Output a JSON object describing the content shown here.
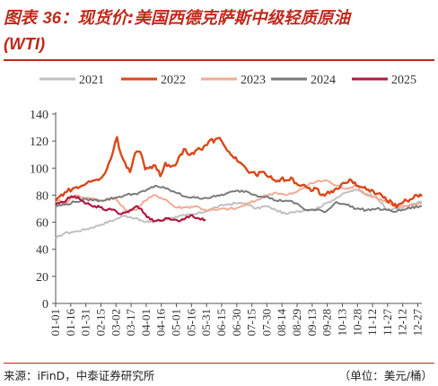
{
  "title": {
    "prefix": "图表",
    "number": "36",
    "text": "：现货价:美国西德克萨斯中级轻质原油",
    "line2": "(WTI)"
  },
  "source": "来源：iFinD，中泰证券研究所",
  "unit": "（单位：美元/桶）",
  "colors": {
    "title": "#c0291b",
    "2021": "#c0c0c0",
    "2022": "#d9481a",
    "2023": "#f2ab95",
    "2024": "#7a7a7a",
    "2025": "#b01842"
  },
  "chart_data": {
    "type": "line",
    "xlabel": "",
    "ylabel": "",
    "ylim": [
      0,
      140
    ],
    "yticks": [
      0,
      20,
      40,
      60,
      80,
      100,
      120,
      140
    ],
    "x_tick_labels": [
      "01-01",
      "01-16",
      "01-31",
      "02-15",
      "03-02",
      "03-17",
      "04-01",
      "04-16",
      "05-01",
      "05-16",
      "05-31",
      "06-15",
      "06-30",
      "07-15",
      "07-30",
      "08-14",
      "08-29",
      "09-13",
      "09-28",
      "10-13",
      "10-28",
      "11-12",
      "11-27",
      "12-12",
      "12-27"
    ],
    "x_unit": "day of year",
    "xlim": [
      1,
      365
    ],
    "grid": false,
    "legend_position": "top",
    "series": [
      {
        "name": "2021",
        "x": [
          1,
          10,
          20,
          32,
          45,
          60,
          70,
          80,
          90,
          100,
          110,
          120,
          130,
          140,
          150,
          160,
          170,
          180,
          190,
          200,
          210,
          220,
          230,
          240,
          250,
          260,
          270,
          280,
          290,
          300,
          310,
          320,
          330,
          340,
          350,
          365
        ],
        "values": [
          48,
          52,
          53,
          55,
          58,
          62,
          65,
          63,
          60,
          61,
          62,
          64,
          65,
          66,
          68,
          71,
          73,
          74,
          74,
          70,
          72,
          69,
          66,
          68,
          69,
          70,
          74,
          78,
          82,
          84,
          81,
          79,
          69,
          70,
          72,
          75
        ]
      },
      {
        "name": "2022",
        "x": [
          1,
          5,
          10,
          18,
          25,
          32,
          40,
          45,
          50,
          54,
          58,
          62,
          66,
          70,
          75,
          80,
          85,
          90,
          95,
          100,
          105,
          110,
          115,
          120,
          125,
          130,
          135,
          140,
          145,
          150,
          155,
          158,
          162,
          166,
          170,
          175,
          180,
          185,
          190,
          195,
          200,
          205,
          210,
          215,
          220,
          225,
          230,
          235,
          240,
          245,
          250,
          255,
          260,
          265,
          270,
          275,
          280,
          285,
          290,
          295,
          300,
          305,
          310,
          315,
          320,
          325,
          330,
          335,
          340,
          345,
          350,
          355,
          360,
          365
        ],
        "values": [
          76,
          79,
          82,
          85,
          86,
          89,
          91,
          92,
          96,
          104,
          112,
          123,
          110,
          104,
          97,
          111,
          112,
          99,
          101,
          102,
          94,
          104,
          101,
          102,
          110,
          114,
          110,
          113,
          114,
          117,
          121,
          119,
          122,
          120,
          115,
          110,
          108,
          104,
          100,
          97,
          95,
          97,
          95,
          94,
          90,
          92,
          91,
          93,
          89,
          87,
          86,
          83,
          85,
          80,
          81,
          83,
          85,
          88,
          89,
          91,
          87,
          86,
          84,
          84,
          81,
          80,
          76,
          75,
          71,
          74,
          76,
          77,
          80,
          79
        ]
      },
      {
        "name": "2023",
        "x": [
          1,
          10,
          20,
          32,
          45,
          60,
          70,
          80,
          90,
          100,
          110,
          120,
          130,
          140,
          150,
          160,
          170,
          180,
          190,
          200,
          210,
          220,
          230,
          240,
          250,
          260,
          270,
          280,
          290,
          300,
          310,
          320,
          330,
          340,
          350,
          365
        ],
        "values": [
          77,
          74,
          80,
          78,
          76,
          78,
          69,
          69,
          76,
          80,
          77,
          71,
          71,
          72,
          69,
          69,
          70,
          70,
          73,
          76,
          80,
          82,
          80,
          82,
          87,
          90,
          91,
          87,
          85,
          87,
          80,
          78,
          75,
          71,
          72,
          74
        ]
      },
      {
        "name": "2024",
        "x": [
          1,
          10,
          20,
          32,
          45,
          60,
          70,
          80,
          90,
          100,
          110,
          120,
          130,
          140,
          150,
          160,
          170,
          180,
          190,
          200,
          210,
          220,
          230,
          240,
          250,
          260,
          270,
          280,
          290,
          300,
          310,
          320,
          330,
          340,
          350,
          365
        ],
        "values": [
          72,
          73,
          75,
          77,
          76,
          78,
          80,
          81,
          83,
          87,
          85,
          82,
          79,
          78,
          78,
          79,
          81,
          83,
          83,
          80,
          79,
          76,
          76,
          74,
          69,
          69,
          68,
          75,
          73,
          70,
          69,
          70,
          69,
          68,
          70,
          72
        ]
      },
      {
        "name": "2025",
        "x": [
          1,
          8,
          15,
          20,
          25,
          30,
          35,
          40,
          45,
          50,
          55,
          60,
          65,
          70,
          75,
          78,
          82,
          86,
          90,
          95,
          100,
          105,
          110,
          115,
          120,
          125,
          130,
          135,
          140,
          145,
          150
        ],
        "values": [
          73,
          75,
          78,
          79,
          77,
          74,
          73,
          72,
          71,
          69,
          70,
          69,
          66,
          67,
          69,
          70,
          72,
          70,
          66,
          62,
          61,
          61,
          63,
          62,
          62,
          61,
          63,
          65,
          63,
          62,
          62
        ]
      }
    ]
  }
}
